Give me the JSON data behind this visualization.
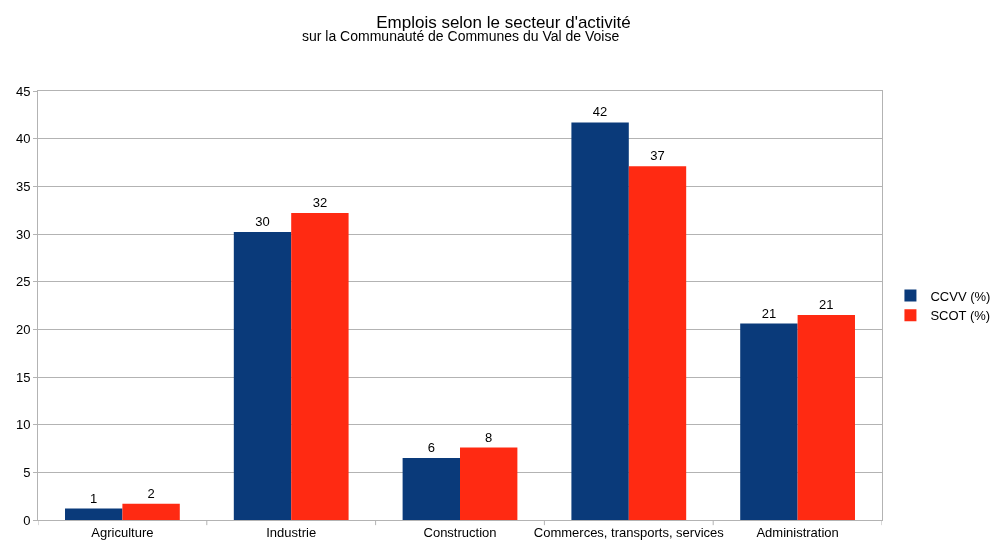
{
  "chart_data": {
    "type": "bar",
    "title": "Emplois selon le secteur d'activité",
    "subtitle": "sur la Communauté de Communes du Val de Voise",
    "categories": [
      "Agriculture",
      "Industrie",
      "Construction",
      "Commerces, transports, services",
      "Administration"
    ],
    "series": [
      {
        "name": "CCVV (%)",
        "color": "#0a3a7a",
        "values": [
          1.2,
          30.2,
          6.5,
          41.7,
          20.6
        ],
        "value_labels": [
          "1",
          "30",
          "6",
          "42",
          "21"
        ]
      },
      {
        "name": "SCOT (%)",
        "color": "#ff2a12",
        "values": [
          1.7,
          32.2,
          7.6,
          37.1,
          21.5
        ],
        "value_labels": [
          "2",
          "32",
          "8",
          "37",
          "21"
        ]
      }
    ],
    "ylim": [
      0,
      45
    ],
    "yticks": [
      0,
      5,
      10,
      15,
      20,
      25,
      30,
      35,
      40,
      45
    ],
    "grid": "y",
    "legend": "right"
  }
}
